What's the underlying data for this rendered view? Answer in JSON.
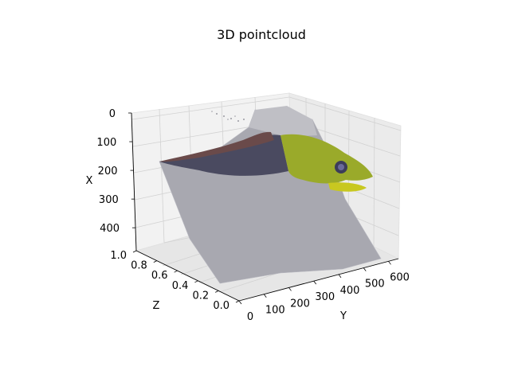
{
  "chart_data": {
    "type": "scatter",
    "projection": "3d",
    "title": "3D pointcloud",
    "xlabel": "X",
    "ylabel": "Y",
    "zlabel": "Z",
    "x_ticks": [
      "0",
      "100",
      "200",
      "300",
      "400"
    ],
    "y_ticks": [
      "0",
      "100",
      "200",
      "300",
      "400",
      "500",
      "600"
    ],
    "z_ticks": [
      "0.0",
      "0.2",
      "0.4",
      "0.6",
      "0.8",
      "1.0"
    ],
    "xlim": [
      0,
      480
    ],
    "ylim": [
      0,
      640
    ],
    "zlim": [
      0,
      1
    ],
    "x_inverted": true,
    "grid": true,
    "pane_color": "#f2f2f2",
    "point_colors": {
      "background_surface": "#a8a8b0",
      "eel_head": "#9aaa2a",
      "eel_body": "#4a4a60",
      "eye": "#3c3c5a"
    }
  }
}
